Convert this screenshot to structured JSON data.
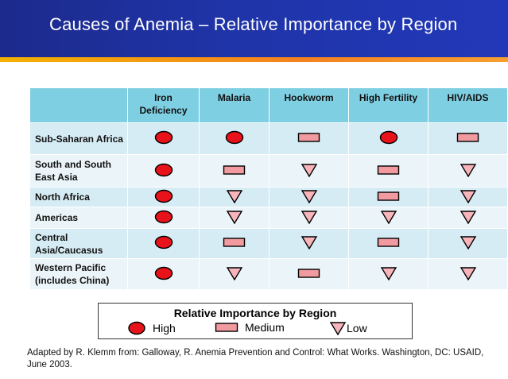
{
  "title": "Causes of Anemia – Relative Importance by Region",
  "table": {
    "columns": [
      "Iron Deficiency",
      "Malaria",
      "Hookworm",
      "High Fertility",
      "HIV/AIDS"
    ],
    "rows": [
      {
        "region": "Sub-Saharan Africa",
        "values": [
          "high",
          "high",
          "medium",
          "high",
          "medium"
        ]
      },
      {
        "region": "South and South East Asia",
        "values": [
          "high",
          "medium",
          "low",
          "medium",
          "low"
        ]
      },
      {
        "region": "North Africa",
        "values": [
          "high",
          "low",
          "low",
          "medium",
          "low"
        ]
      },
      {
        "region": "Americas",
        "values": [
          "high",
          "low",
          "low",
          "low",
          "low"
        ]
      },
      {
        "region": "Central Asia/Caucasus",
        "values": [
          "high",
          "medium",
          "low",
          "medium",
          "low"
        ]
      },
      {
        "region": "Western Pacific (includes China)",
        "values": [
          "high",
          "low",
          "medium",
          "low",
          "low"
        ]
      }
    ]
  },
  "legend": {
    "title": "Relative Importance by Region",
    "high": "High",
    "medium": "Medium",
    "low": "Low"
  },
  "footnote": "Adapted by R. Klemm from: Galloway, R. Anemia Prevention and Control: What Works.  Washington, DC: USAID, June 2003.",
  "colors": {
    "symbol_fill": "#e8121a",
    "rect_fill": "#f19aa0",
    "tri_fill": "#f7b4ba",
    "header_bg": "#7fcfe3"
  }
}
